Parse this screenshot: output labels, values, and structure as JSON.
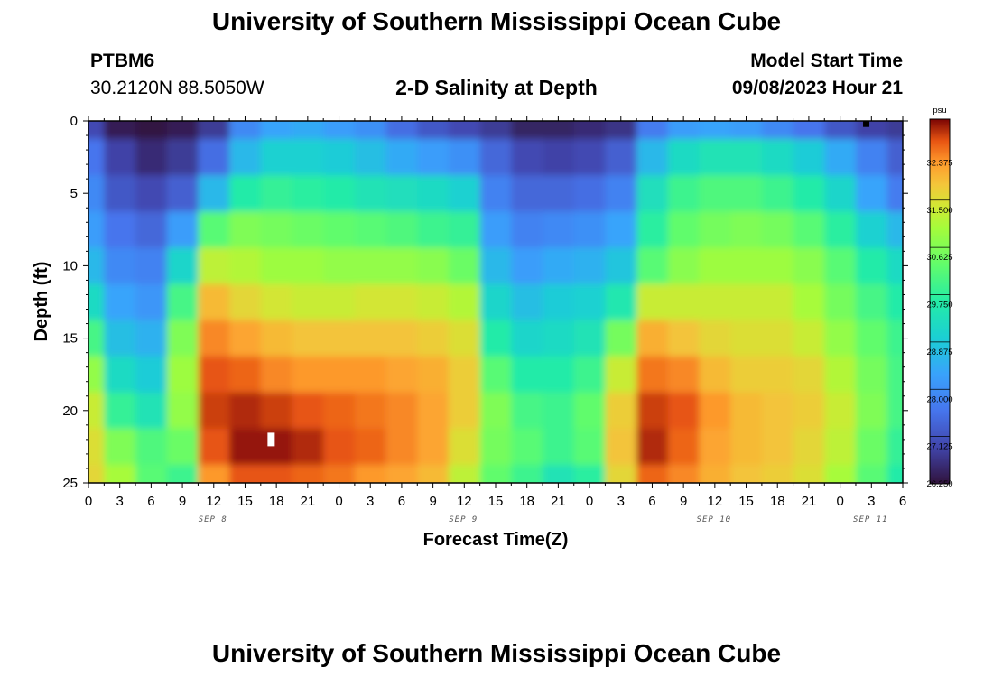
{
  "header": {
    "title": "University of Southern Mississippi Ocean Cube",
    "station_id": "PTBM6",
    "coordinates": "30.2120N  88.5050W",
    "subtitle": "2-D Salinity at Depth",
    "start_label": "Model Start Time",
    "start_value": "09/08/2023 Hour 21"
  },
  "footer": {
    "title": "University of Southern Mississippi Ocean Cube"
  },
  "chart_data": {
    "type": "heatmap",
    "title": "2-D Salinity at Depth",
    "xlabel": "Forecast Time(Z)",
    "ylabel": "Depth (ft)",
    "x_hours_range": [
      0,
      78
    ],
    "y_range": [
      0,
      25
    ],
    "y_inverted": true,
    "x_ticks": [
      "0",
      "3",
      "6",
      "9",
      "12",
      "15",
      "18",
      "21",
      "0",
      "3",
      "6",
      "9",
      "12",
      "15",
      "18",
      "21",
      "0",
      "3",
      "6",
      "9",
      "12",
      "15",
      "18",
      "21",
      "0",
      "3",
      "6"
    ],
    "y_ticks": [
      "0",
      "5",
      "10",
      "15",
      "20",
      "25"
    ],
    "date_labels": [
      {
        "label": "SEP 8",
        "hour": 12
      },
      {
        "label": "SEP 9",
        "hour": 36
      },
      {
        "label": "SEP 10",
        "hour": 60
      },
      {
        "label": "SEP 11",
        "hour": 75
      }
    ],
    "colorbar": {
      "unit": "psu",
      "min": 26.25,
      "max": 33.0,
      "tick_labels": [
        "32.375",
        "31.500",
        "30.625",
        "29.750",
        "28.875",
        "28.000",
        "27.125",
        "26.250"
      ],
      "tick_values": [
        32.375,
        31.5,
        30.625,
        29.75,
        28.875,
        28.0,
        27.125,
        26.25
      ]
    },
    "time_columns_hours": [
      0,
      3,
      6,
      9,
      12,
      15,
      18,
      21,
      24,
      27,
      30,
      33,
      36,
      39,
      42,
      45,
      48,
      51,
      54,
      57,
      60,
      63,
      66,
      69,
      72,
      75,
      78
    ],
    "depth_rows_ft": [
      0,
      2.5,
      5,
      7.5,
      10,
      12.5,
      15,
      17.5,
      20,
      22.5,
      25
    ],
    "salinity_psu": [
      [
        27.0,
        26.4,
        26.3,
        26.4,
        26.8,
        27.9,
        28.3,
        28.4,
        28.2,
        28.0,
        27.5,
        27.2,
        27.0,
        26.8,
        26.5,
        26.5,
        26.6,
        26.7,
        27.7,
        28.2,
        28.3,
        28.2,
        27.9,
        27.6,
        27.2,
        26.9,
        26.8
      ],
      [
        27.6,
        26.9,
        26.6,
        26.8,
        27.5,
        28.6,
        29.0,
        29.0,
        28.9,
        28.7,
        28.4,
        28.2,
        28.0,
        27.4,
        27.0,
        26.9,
        27.0,
        27.3,
        28.6,
        29.2,
        29.4,
        29.4,
        29.2,
        28.9,
        28.4,
        27.8,
        27.3
      ],
      [
        27.9,
        27.2,
        27.0,
        27.3,
        28.6,
        29.6,
        29.8,
        29.7,
        29.6,
        29.4,
        29.3,
        29.2,
        29.0,
        27.8,
        27.4,
        27.4,
        27.5,
        27.8,
        29.3,
        29.9,
        30.1,
        30.1,
        29.9,
        29.6,
        29.1,
        28.3,
        27.7
      ],
      [
        28.2,
        27.6,
        27.4,
        28.2,
        30.2,
        30.6,
        30.5,
        30.4,
        30.3,
        30.2,
        30.1,
        29.9,
        29.8,
        28.2,
        27.8,
        27.9,
        28.0,
        28.3,
        29.7,
        30.3,
        30.5,
        30.6,
        30.5,
        30.2,
        29.7,
        29.0,
        28.6
      ],
      [
        28.6,
        27.9,
        27.8,
        29.1,
        31.2,
        31.1,
        30.9,
        30.9,
        30.8,
        30.8,
        30.8,
        30.7,
        30.4,
        28.6,
        28.2,
        28.4,
        28.5,
        28.8,
        30.2,
        30.7,
        30.9,
        30.9,
        30.9,
        30.7,
        30.2,
        29.6,
        29.2
      ],
      [
        29.2,
        28.3,
        28.1,
        30.0,
        31.9,
        31.6,
        31.4,
        31.3,
        31.3,
        31.4,
        31.4,
        31.3,
        31.1,
        29.1,
        28.7,
        28.9,
        29.0,
        29.5,
        31.3,
        31.3,
        31.3,
        31.3,
        31.3,
        31.0,
        30.5,
        30.0,
        29.6
      ],
      [
        30.0,
        28.7,
        28.5,
        30.6,
        32.3,
        32.1,
        31.9,
        31.8,
        31.8,
        31.8,
        31.8,
        31.7,
        31.5,
        29.6,
        29.1,
        29.2,
        29.4,
        30.5,
        32.0,
        31.8,
        31.6,
        31.5,
        31.5,
        31.3,
        30.8,
        30.3,
        29.9
      ],
      [
        30.8,
        29.2,
        28.9,
        30.9,
        32.6,
        32.5,
        32.3,
        32.2,
        32.2,
        32.2,
        32.1,
        32.0,
        31.7,
        30.2,
        29.6,
        29.6,
        29.9,
        31.3,
        32.4,
        32.3,
        31.9,
        31.7,
        31.7,
        31.6,
        31.1,
        30.5,
        30.0
      ],
      [
        31.3,
        29.8,
        29.4,
        30.8,
        32.7,
        32.8,
        32.7,
        32.6,
        32.5,
        32.4,
        32.3,
        32.1,
        31.7,
        30.6,
        30.0,
        29.9,
        30.3,
        31.7,
        32.7,
        32.6,
        32.2,
        31.9,
        31.8,
        31.7,
        31.3,
        30.6,
        30.0
      ],
      [
        31.5,
        30.6,
        30.1,
        30.4,
        32.6,
        32.9,
        32.9,
        32.8,
        32.6,
        32.5,
        32.3,
        32.1,
        31.5,
        30.5,
        30.2,
        29.9,
        30.2,
        31.8,
        32.8,
        32.5,
        32.1,
        31.9,
        31.8,
        31.6,
        31.2,
        30.4,
        29.8
      ],
      [
        31.6,
        31.0,
        30.2,
        29.9,
        32.2,
        32.6,
        32.6,
        32.5,
        32.4,
        32.2,
        32.1,
        31.9,
        31.2,
        30.3,
        29.9,
        29.4,
        29.7,
        31.6,
        32.5,
        32.3,
        32.0,
        31.8,
        31.7,
        31.5,
        31.0,
        30.2,
        29.6
      ]
    ],
    "markers": [
      {
        "hour": 17.5,
        "depth_ft": 22,
        "color": "#ffffff",
        "label": "missing-value"
      },
      {
        "hour": 74.5,
        "depth_ft": 0.2,
        "color": "#000000",
        "label": "missing-value"
      }
    ]
  }
}
